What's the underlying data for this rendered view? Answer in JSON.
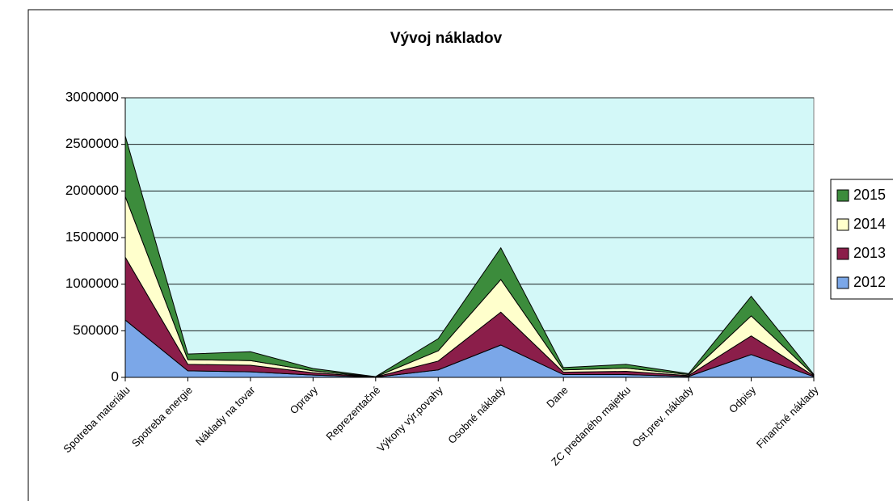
{
  "chart_data": {
    "type": "stacked_area",
    "title": "Vývoj nákladov",
    "categories": [
      "Spotreba materiálu",
      "Spotreba energie",
      "Náklady na tovar",
      "Opravy",
      "Reprezentačné",
      "Výkony výr.povahy",
      "Osobné náklady",
      "Dane",
      "ZC predaného majetku",
      "Ost.prev. náklady",
      "Odpisy",
      "Finančné náklady"
    ],
    "series": [
      {
        "name": "2012",
        "color": "#7ba7e8",
        "values": [
          615000,
          70000,
          60000,
          25000,
          2000,
          80000,
          347000,
          30000,
          30000,
          10000,
          245000,
          8000
        ]
      },
      {
        "name": "2013",
        "color": "#8b1e4a",
        "values": [
          675000,
          70000,
          70000,
          25000,
          2000,
          95000,
          353000,
          25000,
          35000,
          10000,
          200000,
          8000
        ]
      },
      {
        "name": "2014",
        "color": "#ffffcc",
        "values": [
          650000,
          50000,
          50000,
          20000,
          2000,
          110000,
          350000,
          25000,
          35000,
          10000,
          215000,
          8000
        ]
      },
      {
        "name": "2015",
        "color": "#3c8c3c",
        "values": [
          650000,
          60000,
          95000,
          25000,
          2000,
          130000,
          340000,
          25000,
          40000,
          10000,
          210000,
          8000
        ]
      }
    ],
    "ylim": [
      0,
      3000000
    ],
    "yticks": [
      0,
      500000,
      1000000,
      1500000,
      2000000,
      2500000,
      3000000
    ],
    "grid": true,
    "legend": "right"
  }
}
